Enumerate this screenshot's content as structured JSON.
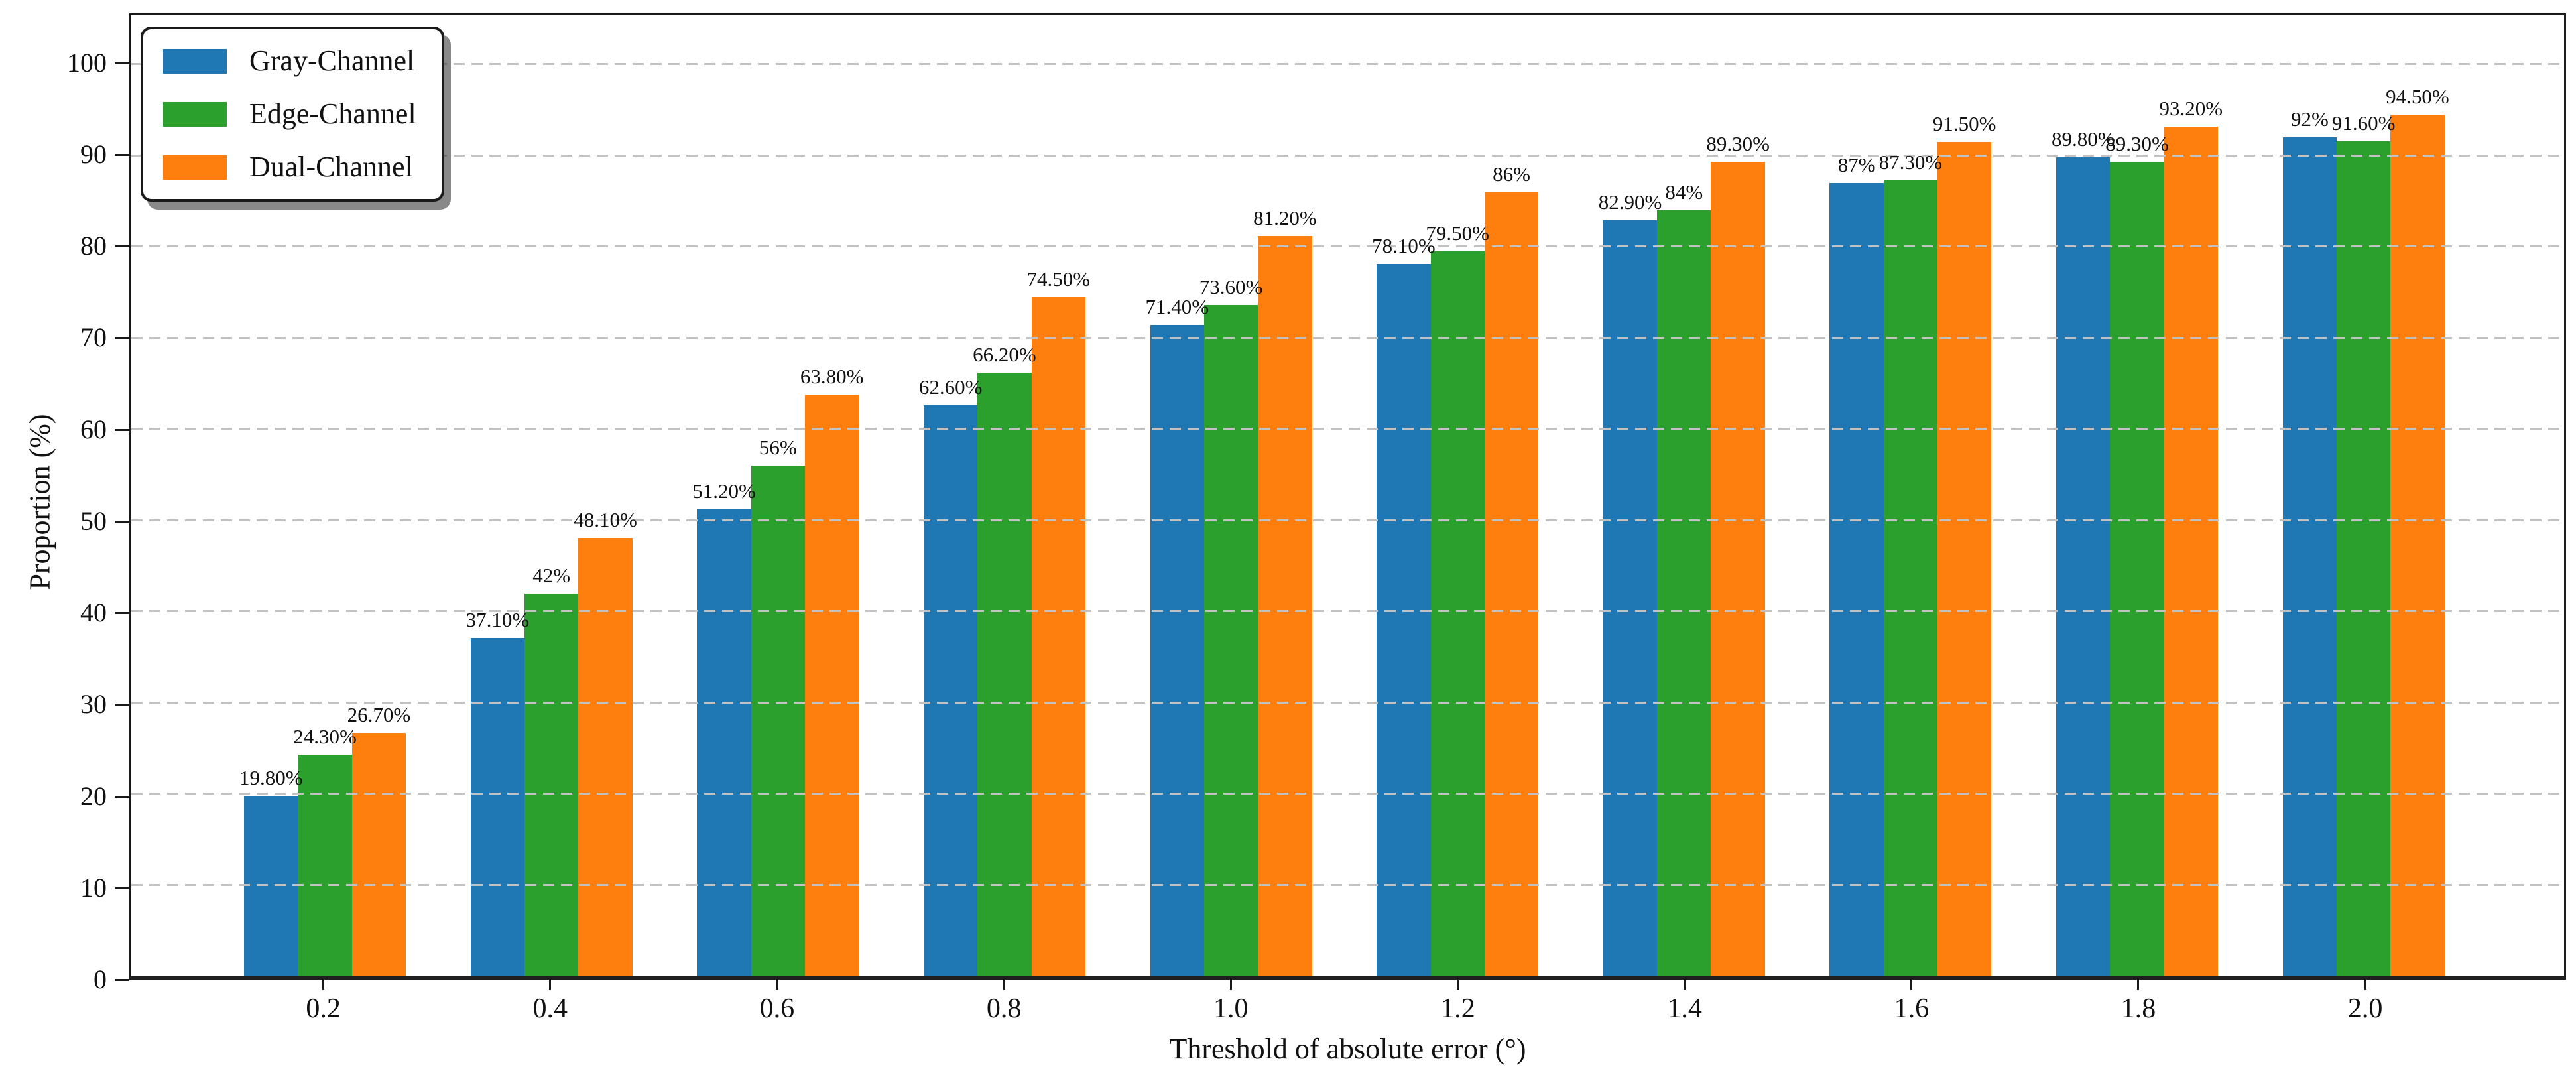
{
  "chart_data": {
    "type": "bar",
    "title": "",
    "xlabel": "Threshold of absolute error (°)",
    "ylabel": "Proportion (%)",
    "categories": [
      "0.2",
      "0.4",
      "0.6",
      "0.8",
      "1.0",
      "1.2",
      "1.4",
      "1.6",
      "1.8",
      "2.0"
    ],
    "series": [
      {
        "name": "Gray-Channel",
        "color": "#1f77b4",
        "values": [
          19.8,
          37.1,
          51.2,
          62.6,
          71.4,
          78.1,
          82.9,
          87,
          89.8,
          92
        ],
        "labels": [
          "19.80%",
          "37.10%",
          "51.20%",
          "62.60%",
          "71.40%",
          "78.10%",
          "82.90%",
          "87%",
          "89.80%",
          "92%"
        ]
      },
      {
        "name": "Edge-Channel",
        "color": "#2ca02c",
        "values": [
          24.3,
          42,
          56,
          66.2,
          73.6,
          79.5,
          84,
          87.3,
          89.3,
          91.6
        ],
        "labels": [
          "24.30%",
          "42%",
          "56%",
          "66.20%",
          "73.60%",
          "79.50%",
          "84%",
          "87.30%",
          "89.30%",
          "91.60%"
        ]
      },
      {
        "name": "Dual-Channel",
        "color": "#ff7f0e",
        "values": [
          26.7,
          48.1,
          63.8,
          74.5,
          81.2,
          86,
          89.3,
          91.5,
          93.2,
          94.5
        ],
        "labels": [
          "26.70%",
          "48.10%",
          "63.80%",
          "74.50%",
          "81.20%",
          "86%",
          "89.30%",
          "91.50%",
          "93.20%",
          "94.50%"
        ]
      }
    ],
    "ylim": [
      0,
      105.4
    ],
    "yticks": [
      0,
      10,
      20,
      30,
      40,
      50,
      60,
      70,
      80,
      90,
      100
    ],
    "grid": "dashed-horizontal",
    "legend_position": "upper-left"
  }
}
